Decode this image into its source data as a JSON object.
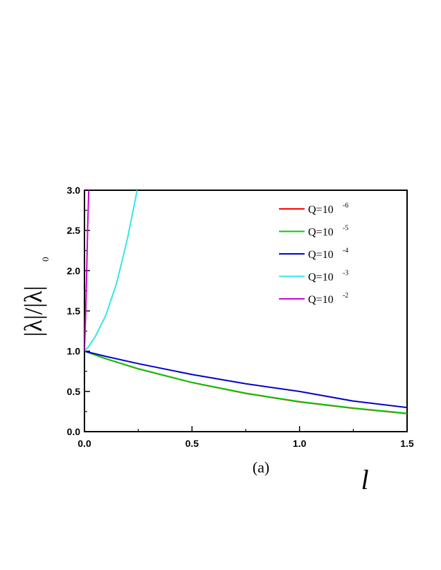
{
  "chart_data": {
    "type": "line",
    "xlabel": "l",
    "ylabel": "|λ|/|λ|",
    "ylabel_subscript": "0",
    "panel_label": "(a)",
    "xlim": [
      0,
      1.5
    ],
    "ylim": [
      0,
      3.0
    ],
    "x_ticks": [
      "0.0",
      "0.5",
      "1.0",
      "1.5"
    ],
    "y_ticks": [
      "0.0",
      "0.5",
      "1.0",
      "1.5",
      "2.0",
      "2.5",
      "3.0"
    ],
    "grid": false,
    "legend_position": "top-right",
    "series": [
      {
        "name": "Q=10",
        "exponent": "-6",
        "color": "#ff0000",
        "x": [
          0,
          0.1,
          0.25,
          0.5,
          0.75,
          1.0,
          1.25,
          1.5
        ],
        "y": [
          1.0,
          0.905,
          0.78,
          0.61,
          0.475,
          0.37,
          0.29,
          0.225
        ]
      },
      {
        "name": "Q=10",
        "exponent": "-5",
        "color": "#00cc00",
        "x": [
          0,
          0.1,
          0.25,
          0.5,
          0.75,
          1.0,
          1.25,
          1.5
        ],
        "y": [
          1.0,
          0.906,
          0.782,
          0.612,
          0.478,
          0.373,
          0.293,
          0.228
        ]
      },
      {
        "name": "Q=10",
        "exponent": "-4",
        "color": "#0000cc",
        "x": [
          0,
          0.1,
          0.25,
          0.5,
          0.75,
          1.0,
          1.25,
          1.5
        ],
        "y": [
          1.0,
          0.935,
          0.845,
          0.71,
          0.595,
          0.5,
          0.38,
          0.3
        ]
      },
      {
        "name": "Q=10",
        "exponent": "-3",
        "color": "#33e6e6",
        "x": [
          0,
          0.02,
          0.05,
          0.1,
          0.15,
          0.2,
          0.23,
          0.245
        ],
        "y": [
          1.0,
          1.06,
          1.18,
          1.45,
          1.85,
          2.4,
          2.8,
          3.0
        ]
      },
      {
        "name": "Q=10",
        "exponent": "-2",
        "color": "#cc00cc",
        "x": [
          0,
          0.005,
          0.01,
          0.015,
          0.02
        ],
        "y": [
          1.0,
          1.4,
          1.95,
          2.55,
          3.0
        ]
      }
    ]
  }
}
